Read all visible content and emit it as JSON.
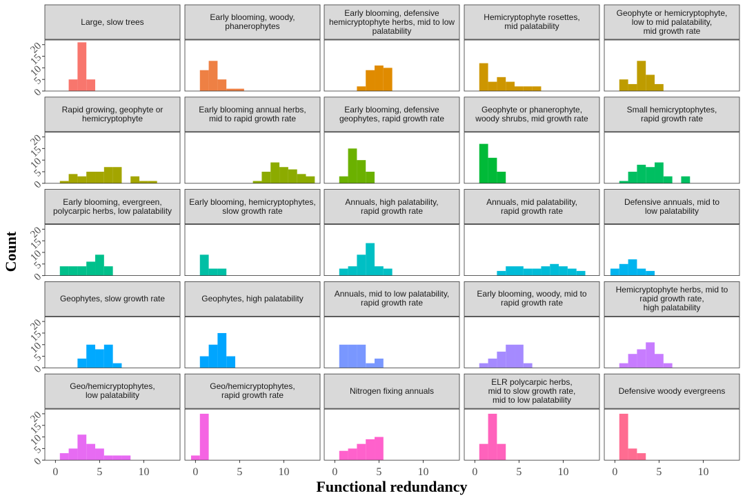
{
  "chart_data": {
    "type": "histogram",
    "x_label": "Functional redundancy",
    "y_label": "Count",
    "xlim": [
      -1.2,
      14.1
    ],
    "ylim": [
      0,
      22
    ],
    "xticks": [
      0,
      5,
      10
    ],
    "yticks": [
      0,
      5,
      10,
      15,
      20
    ],
    "panels": [
      {
        "title": "Large, slow trees",
        "color": "#F8766D",
        "bins": [
          1.5,
          2.5,
          3.5,
          4.5
        ],
        "counts": [
          5,
          21,
          5
        ]
      },
      {
        "title": "Early blooming, woody,\nphanerophytes",
        "color": "#EE8044",
        "bins": [
          0.5,
          1.5,
          2.5,
          3.5,
          4.5,
          5.5
        ],
        "counts": [
          9,
          13,
          5,
          1,
          1
        ]
      },
      {
        "title": "Early blooming, defensive\nhemicryptophyte herbs, mid to low\npalatability",
        "color": "#E08B00",
        "bins": [
          2.5,
          3.5,
          4.5,
          5.5,
          6.5
        ],
        "counts": [
          2,
          9,
          11,
          10
        ]
      },
      {
        "title": "Hemicryptophyte rosettes,\nmid palatability",
        "color": "#CD9600",
        "bins": [
          0.5,
          1.5,
          2.5,
          3.5,
          4.5,
          5.5,
          6.5,
          7.5
        ],
        "counts": [
          12,
          4,
          6,
          4,
          2,
          2,
          2
        ]
      },
      {
        "title": "Geophyte or hemicryptophyte,\nlow to mid palatability,\nmid growth rate",
        "color": "#BE9C00",
        "bins": [
          0.5,
          1.5,
          2.5,
          3.5,
          4.5,
          5.5
        ],
        "counts": [
          5,
          3,
          13,
          7,
          3
        ]
      },
      {
        "title": "Rapid growing, geophyte or\nhemicryptophyte",
        "color": "#A3A500",
        "bins": [
          0.5,
          1.5,
          2.5,
          3.5,
          4.5,
          5.5,
          6.5,
          7.5,
          8.5,
          9.5,
          10.5,
          11.5
        ],
        "counts": [
          1,
          4,
          3,
          5,
          5,
          7,
          7,
          0,
          3,
          1,
          1
        ]
      },
      {
        "title": "Early blooming annual herbs,\nmid to rapid growth rate",
        "color": "#8CAB00",
        "bins": [
          6.5,
          7.5,
          8.5,
          9.5,
          10.5,
          11.5,
          12.5,
          13.5
        ],
        "counts": [
          1,
          5,
          9,
          7,
          6,
          4,
          3
        ]
      },
      {
        "title": "Early blooming, defensive\ngeophytes, rapid growth rate",
        "color": "#6BB100",
        "bins": [
          0.5,
          1.5,
          2.5,
          3.5,
          4.5
        ],
        "counts": [
          3,
          15,
          10,
          5
        ]
      },
      {
        "title": "Geophyte or phanerophyte,\nwoody shrubs, mid growth rate",
        "color": "#00BA38",
        "bins": [
          0.5,
          1.5,
          2.5,
          3.5
        ],
        "counts": [
          17,
          11,
          5
        ]
      },
      {
        "title": "Small hemicryptophytes,\nrapid growth rate",
        "color": "#00BF61",
        "bins": [
          0.5,
          1.5,
          2.5,
          3.5,
          4.5,
          5.5,
          6.5,
          7.5,
          8.5
        ],
        "counts": [
          1,
          5,
          8,
          7,
          9,
          3,
          0,
          3
        ]
      },
      {
        "title": "Early blooming, evergreen,\npolycarpic herbs, low palatability",
        "color": "#00C08B",
        "bins": [
          0.5,
          1.5,
          2.5,
          3.5,
          4.5,
          5.5,
          6.5
        ],
        "counts": [
          4,
          4,
          4,
          6,
          9,
          4
        ]
      },
      {
        "title": "Early blooming, hemicryptophytes,\nslow growth rate",
        "color": "#00BFA5",
        "bins": [
          0.5,
          1.5,
          2.5,
          3.5
        ],
        "counts": [
          9,
          3,
          3
        ]
      },
      {
        "title": "Annuals, high palatability,\nrapid growth rate",
        "color": "#00BFC4",
        "bins": [
          0.5,
          1.5,
          2.5,
          3.5,
          4.5,
          5.5,
          6.5
        ],
        "counts": [
          3,
          4,
          9,
          14,
          4,
          3
        ]
      },
      {
        "title": "Annuals, mid palatability,\nrapid growth rate",
        "color": "#00BCD8",
        "bins": [
          2.5,
          3.5,
          4.5,
          5.5,
          6.5,
          7.5,
          8.5,
          9.5,
          10.5,
          11.5,
          12.5
        ],
        "counts": [
          2,
          4,
          4,
          3,
          3,
          4,
          5,
          4,
          3,
          2
        ]
      },
      {
        "title": "Defensive annuals, mid to\nlow palatability",
        "color": "#00B4EF",
        "bins": [
          -0.5,
          0.5,
          1.5,
          2.5,
          3.5,
          4.5
        ],
        "counts": [
          3,
          5,
          7,
          3,
          2
        ]
      },
      {
        "title": "Geophytes, slow growth rate",
        "color": "#00A9FF",
        "bins": [
          2.5,
          3.5,
          4.5,
          5.5,
          6.5,
          7.5
        ],
        "counts": [
          4,
          10,
          8,
          10,
          2
        ]
      },
      {
        "title": "Geophytes, high palatability",
        "color": "#00A5FF",
        "bins": [
          0.5,
          1.5,
          2.5,
          3.5,
          4.5
        ],
        "counts": [
          5,
          10,
          15,
          5
        ]
      },
      {
        "title": "Annuals, mid to low palatability,\nrapid growth rate",
        "color": "#7997FF",
        "bins": [
          0.5,
          1.5,
          2.5,
          3.5,
          4.5,
          5.5
        ],
        "counts": [
          10,
          10,
          10,
          2,
          4
        ]
      },
      {
        "title": "Early blooming, woody, mid to\nrapid growth rate",
        "color": "#A58AFF",
        "bins": [
          0.5,
          1.5,
          2.5,
          3.5,
          4.5,
          5.5,
          6.5
        ],
        "counts": [
          2,
          4,
          7,
          10,
          10,
          2
        ]
      },
      {
        "title": "Hemicryptophyte herbs, mid to\nrapid growth rate,\nhigh palatability",
        "color": "#C77CFF",
        "bins": [
          0.5,
          1.5,
          2.5,
          3.5,
          4.5,
          5.5,
          6.5
        ],
        "counts": [
          2,
          6,
          8,
          11,
          6,
          2
        ]
      },
      {
        "title": "Geo/hemicryptophytes,\nlow palatability",
        "color": "#E76BF3",
        "bins": [
          0.5,
          1.5,
          2.5,
          3.5,
          4.5,
          5.5,
          6.5,
          7.5,
          8.5
        ],
        "counts": [
          3,
          5,
          11,
          7,
          5,
          2,
          2,
          2
        ]
      },
      {
        "title": "Geo/hemicryptophytes,\nrapid growth rate",
        "color": "#F564E3",
        "bins": [
          -0.5,
          0.5,
          1.5
        ],
        "counts": [
          2,
          20
        ]
      },
      {
        "title": "Nitrogen fixing annuals",
        "color": "#FF61CC",
        "bins": [
          0.5,
          1.5,
          2.5,
          3.5,
          4.5,
          5.5
        ],
        "counts": [
          4,
          5,
          7,
          9,
          10
        ]
      },
      {
        "title": "ELR polycarpic herbs,\nmid to slow growth rate,\nmid to low palatability",
        "color": "#FF62BC",
        "bins": [
          0.5,
          1.5,
          2.5,
          3.5
        ],
        "counts": [
          7,
          20,
          7
        ]
      },
      {
        "title": "Defensive woody evergreens",
        "color": "#FF6C91",
        "bins": [
          0.5,
          1.5,
          2.5,
          3.5
        ],
        "counts": [
          20,
          5,
          3
        ]
      }
    ]
  }
}
